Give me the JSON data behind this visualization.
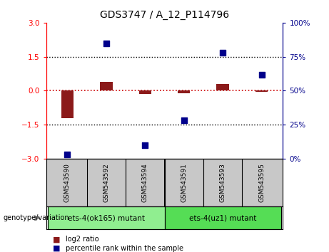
{
  "title": "GDS3747 / A_12_P114796",
  "samples": [
    "GSM543590",
    "GSM543592",
    "GSM543594",
    "GSM543591",
    "GSM543593",
    "GSM543595"
  ],
  "log2_ratio": [
    -1.2,
    0.4,
    -0.15,
    -0.1,
    0.3,
    -0.05
  ],
  "percentile_rank": [
    3,
    85,
    10,
    28,
    78,
    62
  ],
  "groups": [
    {
      "label": "ets-4(ok165) mutant",
      "indices": [
        0,
        1,
        2
      ],
      "color": "#90EE90"
    },
    {
      "label": "ets-4(uz1) mutant",
      "indices": [
        3,
        4,
        5
      ],
      "color": "#55DD55"
    }
  ],
  "ylim_left": [
    -3,
    3
  ],
  "ylim_right": [
    0,
    100
  ],
  "yticks_left": [
    -3,
    -1.5,
    0,
    1.5,
    3
  ],
  "yticks_right": [
    0,
    25,
    50,
    75,
    100
  ],
  "bar_color": "#8B1A1A",
  "dot_color": "#00008B",
  "ref_line_color": "#CC0000",
  "hline_color": "black",
  "bg_color": "white",
  "plot_bg": "white",
  "title_color": "black",
  "sample_bg_color": "#C8C8C8",
  "legend_red_label": "log2 ratio",
  "legend_blue_label": "percentile rank within the sample",
  "genotype_label": "genotype/variation"
}
